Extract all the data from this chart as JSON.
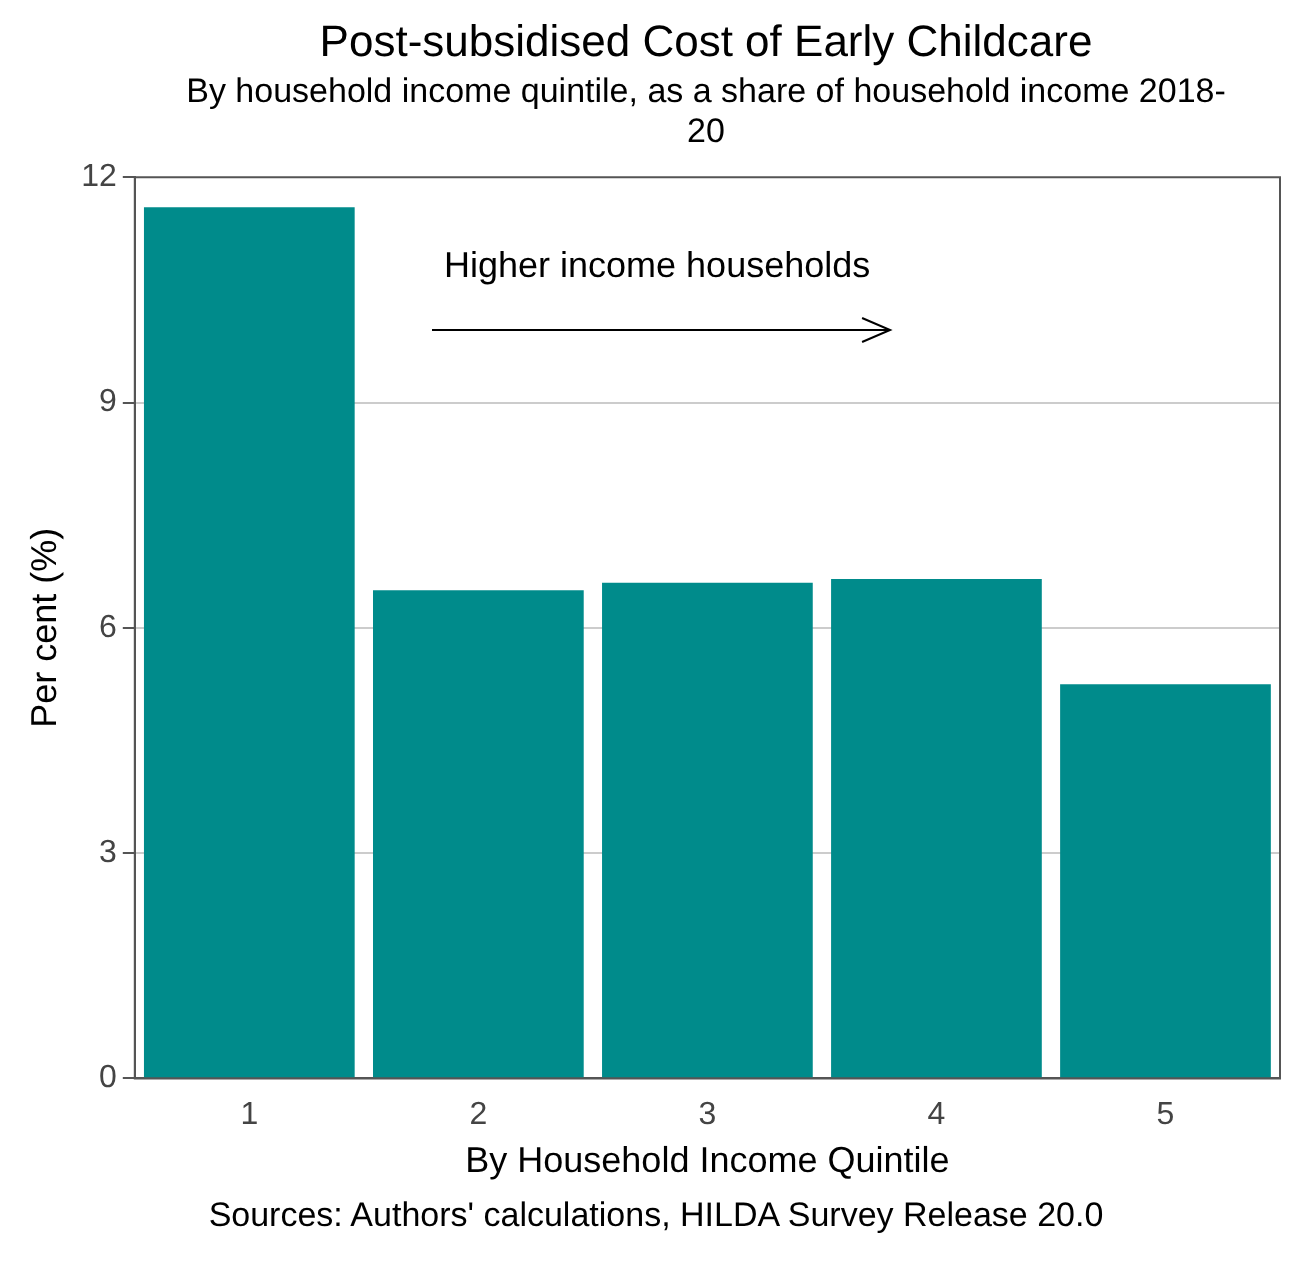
{
  "chart_data": {
    "type": "bar",
    "title": "Post-subsidised Cost of Early Childcare",
    "subtitle": "By household income quintile, as a share of household income 2018-20",
    "xlabel": "By Household Income Quintile",
    "ylabel": "Per cent (%)",
    "categories": [
      "1",
      "2",
      "3",
      "4",
      "5"
    ],
    "values": [
      11.6,
      6.5,
      6.6,
      6.65,
      5.25
    ],
    "color": "#008b8b",
    "ylim": [
      0,
      12
    ],
    "yticks": [
      0,
      3,
      6,
      9,
      12
    ],
    "grid": "y",
    "annotations": [
      "Higher income households",
      "Sources: Authors' calculations, HILDA Survey Release 20.0"
    ]
  }
}
